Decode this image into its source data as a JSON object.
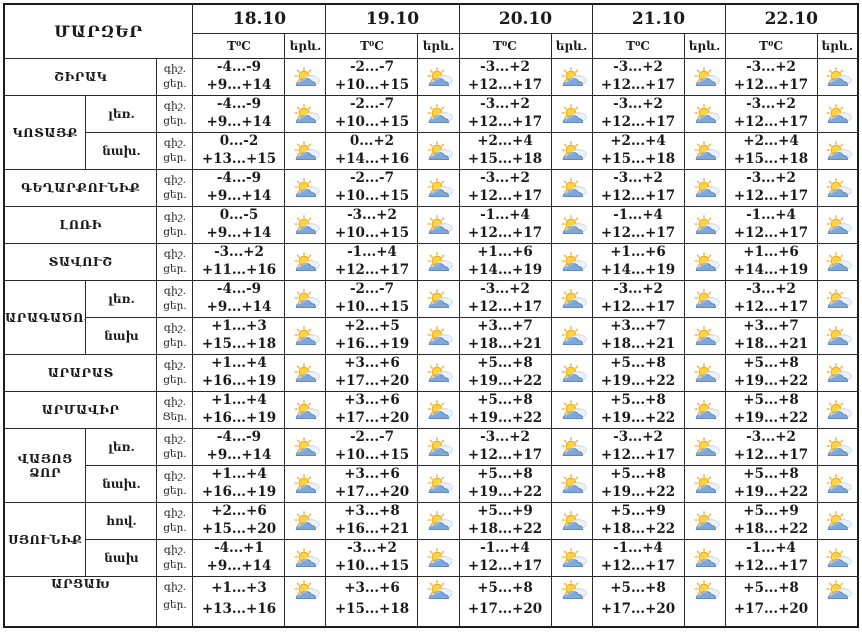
{
  "table": {
    "corner_label": "ՄԱՐԶԵՐ",
    "dates": [
      "18.10",
      "19.10",
      "20.10",
      "21.10",
      "22.10"
    ],
    "temp_header": "T⁰C",
    "weather_header": "երև.",
    "night_label": "գիշ.",
    "day_label": "ցեր.",
    "weather_icon": "sun-behind-cloud",
    "rows": [
      {
        "region": "ՇԻՐԱԿ",
        "rowspan": 1,
        "zone": null,
        "temps": [
          [
            "-4...-9",
            "+9...+14"
          ],
          [
            "-2...-7",
            "+10...+15"
          ],
          [
            "-3...+2",
            "+12...+17"
          ],
          [
            "-3...+2",
            "+12...+17"
          ],
          [
            "-3...+2",
            "+12...+17"
          ]
        ]
      },
      {
        "region": "ԿՈՏԱՅՔ",
        "rowspan": 2,
        "zone": "լեռ.",
        "temps": [
          [
            "-4...-9",
            "+9...+14"
          ],
          [
            "-2...-7",
            "+10...+15"
          ],
          [
            "-3...+2",
            "+12...+17"
          ],
          [
            "-3...+2",
            "+12...+17"
          ],
          [
            "-3...+2",
            "+12...+17"
          ]
        ]
      },
      {
        "zone": "նախ.",
        "temps": [
          [
            "0...-2",
            "+13...+15"
          ],
          [
            "0...+2",
            "+14...+16"
          ],
          [
            "+2...+4",
            "+15...+18"
          ],
          [
            "+2...+4",
            "+15...+18"
          ],
          [
            "+2...+4",
            "+15...+18"
          ]
        ]
      },
      {
        "region": "ԳԵՂԱՐՔՈՒՆԻՔ",
        "rowspan": 1,
        "zone": null,
        "temps": [
          [
            "-4...-9",
            "+9...+14"
          ],
          [
            "-2...-7",
            "+10...+15"
          ],
          [
            "-3...+2",
            "+12...+17"
          ],
          [
            "-3...+2",
            "+12...+17"
          ],
          [
            "-3...+2",
            "+12...+17"
          ]
        ]
      },
      {
        "region": "ԼՈՌԻ",
        "rowspan": 1,
        "zone": null,
        "temps": [
          [
            "0...-5",
            "+9...+14"
          ],
          [
            "-3...+2",
            "+10...+15"
          ],
          [
            "-1...+4",
            "+12...+17"
          ],
          [
            "-1...+4",
            "+12...+17"
          ],
          [
            "-1...+4",
            "+12...+17"
          ]
        ]
      },
      {
        "region": "ՏԱՎՈՒՇ",
        "rowspan": 1,
        "zone": null,
        "temps": [
          [
            "-3...+2",
            "+11...+16"
          ],
          [
            "-1...+4",
            "+12...+17"
          ],
          [
            "+1...+6",
            "+14...+19"
          ],
          [
            "+1...+6",
            "+14...+19"
          ],
          [
            "+1...+6",
            "+14...+19"
          ]
        ]
      },
      {
        "region": "ԱՐԱԳԱԾՈՏՆ",
        "rowspan": 2,
        "zone": "լեռ.",
        "temps": [
          [
            "-4...-9",
            "+9...+14"
          ],
          [
            "-2...-7",
            "+10...+15"
          ],
          [
            "-3...+2",
            "+12...+17"
          ],
          [
            "-3...+2",
            "+12...+17"
          ],
          [
            "-3...+2",
            "+12...+17"
          ]
        ]
      },
      {
        "zone": "նախ",
        "temps": [
          [
            "+1...+3",
            "+15...+18"
          ],
          [
            "+2...+5",
            "+16...+19"
          ],
          [
            "+3...+7",
            "+18...+21"
          ],
          [
            "+3...+7",
            "+18...+21"
          ],
          [
            "+3...+7",
            "+18...+21"
          ]
        ]
      },
      {
        "region": "ԱՐԱՐԱՏ",
        "rowspan": 1,
        "zone": null,
        "temps": [
          [
            "+1...+4",
            "+16...+19"
          ],
          [
            "+3...+6",
            "+17...+20"
          ],
          [
            "+5...+8",
            "+19...+22"
          ],
          [
            "+5...+8",
            "+19...+22"
          ],
          [
            "+5...+8",
            "+19...+22"
          ]
        ]
      },
      {
        "region": "ԱՐՄԱՎԻՐ",
        "rowspan": 1,
        "zone": null,
        "day_label": "Ցեր.",
        "temps": [
          [
            "+1...+4",
            "+16...+19"
          ],
          [
            "+3...+6",
            "+17...+20"
          ],
          [
            "+5...+8",
            "+19...+22"
          ],
          [
            "+5...+8",
            "+19...+22"
          ],
          [
            "+5...+8",
            "+19...+22"
          ]
        ]
      },
      {
        "region": "ՎԱՅՈՑ ՁՈՐ",
        "rowspan": 2,
        "zone": "լեռ.",
        "temps": [
          [
            "-4...-9",
            "+9...+14"
          ],
          [
            "-2...-7",
            "+10...+15"
          ],
          [
            "-3...+2",
            "+12...+17"
          ],
          [
            "-3...+2",
            "+12...+17"
          ],
          [
            "-3...+2",
            "+12...+17"
          ]
        ]
      },
      {
        "zone": "նախ.",
        "temps": [
          [
            "+1...+4",
            "+16...+19"
          ],
          [
            "+3...+6",
            "+17...+20"
          ],
          [
            "+5...+8",
            "+19...+22"
          ],
          [
            "+5...+8",
            "+19...+22"
          ],
          [
            "+5...+8",
            "+19...+22"
          ]
        ]
      },
      {
        "region": "ՍՅՈՒՆԻՔ",
        "rowspan": 2,
        "zone": "հով.",
        "temps": [
          [
            "+2...+6",
            "+15...+20"
          ],
          [
            "+3...+8",
            "+16...+21"
          ],
          [
            "+5...+9",
            "+18...+22"
          ],
          [
            "+5...+9",
            "+18...+22"
          ],
          [
            "+5...+9",
            "+18...+22"
          ]
        ]
      },
      {
        "zone": "նախ",
        "temps": [
          [
            "-4...+1",
            "+9...+14"
          ],
          [
            "-3...+2",
            "+10...+15"
          ],
          [
            "-1...+4",
            "+12...+17"
          ],
          [
            "-1...+4",
            "+12...+17"
          ],
          [
            "-1...+4",
            "+12...+17"
          ]
        ]
      },
      {
        "region": "ԱՐՑԱԽ",
        "rowspan": 1,
        "zone": null,
        "temps": [
          [
            "+1...+3",
            "+13...+16"
          ],
          [
            "+3...+6",
            "+15...+18"
          ],
          [
            "+5...+8",
            "+17...+20"
          ],
          [
            "+5...+8",
            "+17...+20"
          ],
          [
            "+5...+8",
            "+17...+20"
          ]
        ]
      }
    ]
  }
}
